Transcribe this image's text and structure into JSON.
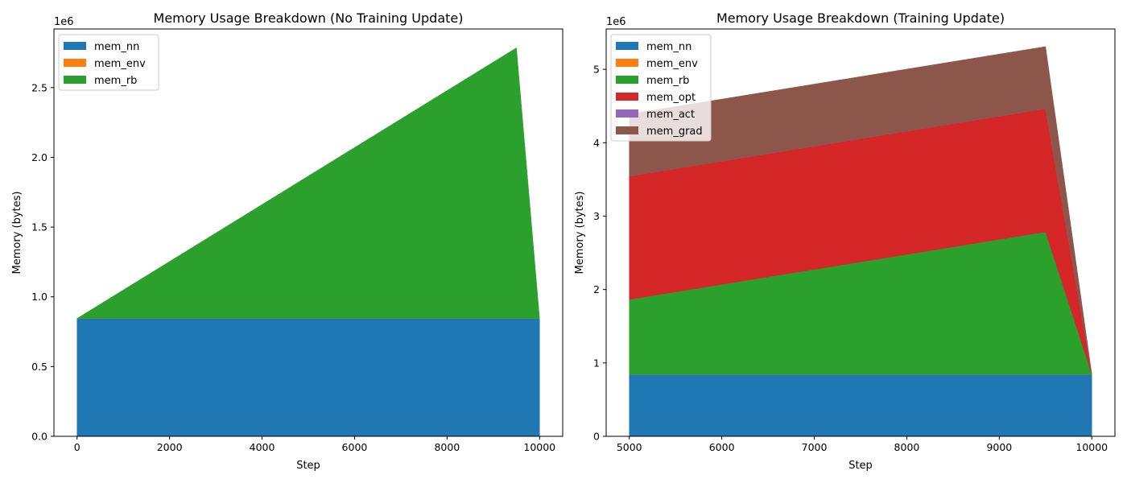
{
  "chart_data": [
    {
      "type": "area",
      "stacked": true,
      "title": "Memory Usage Breakdown (No Training Update)",
      "xlabel": "Step",
      "ylabel": "Memory (bytes)",
      "y_offset_text": "1e6",
      "xlim": [
        -500,
        10500
      ],
      "ylim": [
        0,
        2.92
      ],
      "xticks": [
        0,
        2000,
        4000,
        6000,
        8000,
        10000
      ],
      "yticks": [
        0.0,
        0.5,
        1.0,
        1.5,
        2.0,
        2.5
      ],
      "ytick_labels": [
        "0.0",
        "0.5",
        "1.0",
        "1.5",
        "2.0",
        "2.5"
      ],
      "grid": false,
      "legend": "top-left",
      "x": [
        0,
        9500,
        10000
      ],
      "series": [
        {
          "name": "mem_nn",
          "color": "#1f77b4",
          "values": [
            0.845,
            0.845,
            0.845
          ]
        },
        {
          "name": "mem_env",
          "color": "#ff7f0e",
          "values": [
            0.0,
            0.0,
            0.0
          ]
        },
        {
          "name": "mem_rb",
          "color": "#2ca02c",
          "values": [
            0.0,
            1.94,
            0.0
          ]
        }
      ]
    },
    {
      "type": "area",
      "stacked": true,
      "title": "Memory Usage Breakdown (Training Update)",
      "xlabel": "Step",
      "ylabel": "Memory (bytes)",
      "y_offset_text": "1e6",
      "xlim": [
        4750,
        10250
      ],
      "ylim": [
        0,
        5.55
      ],
      "xticks": [
        5000,
        6000,
        7000,
        8000,
        9000,
        10000
      ],
      "yticks": [
        0,
        1,
        2,
        3,
        4,
        5
      ],
      "ytick_labels": [
        "0",
        "1",
        "2",
        "3",
        "4",
        "5"
      ],
      "grid": false,
      "legend": "top-left",
      "x": [
        5000,
        9500,
        10000
      ],
      "series": [
        {
          "name": "mem_nn",
          "color": "#1f77b4",
          "values": [
            0.845,
            0.845,
            0.845
          ]
        },
        {
          "name": "mem_env",
          "color": "#ff7f0e",
          "values": [
            0.0,
            0.0,
            0.0
          ]
        },
        {
          "name": "mem_rb",
          "color": "#2ca02c",
          "values": [
            1.02,
            1.94,
            0.0
          ]
        },
        {
          "name": "mem_opt",
          "color": "#d62728",
          "values": [
            1.68,
            1.68,
            0.0
          ]
        },
        {
          "name": "mem_act",
          "color": "#9467bd",
          "values": [
            0.0,
            0.0,
            0.0
          ]
        },
        {
          "name": "mem_grad",
          "color": "#8c564b",
          "values": [
            0.845,
            0.845,
            0.0
          ]
        }
      ]
    }
  ]
}
